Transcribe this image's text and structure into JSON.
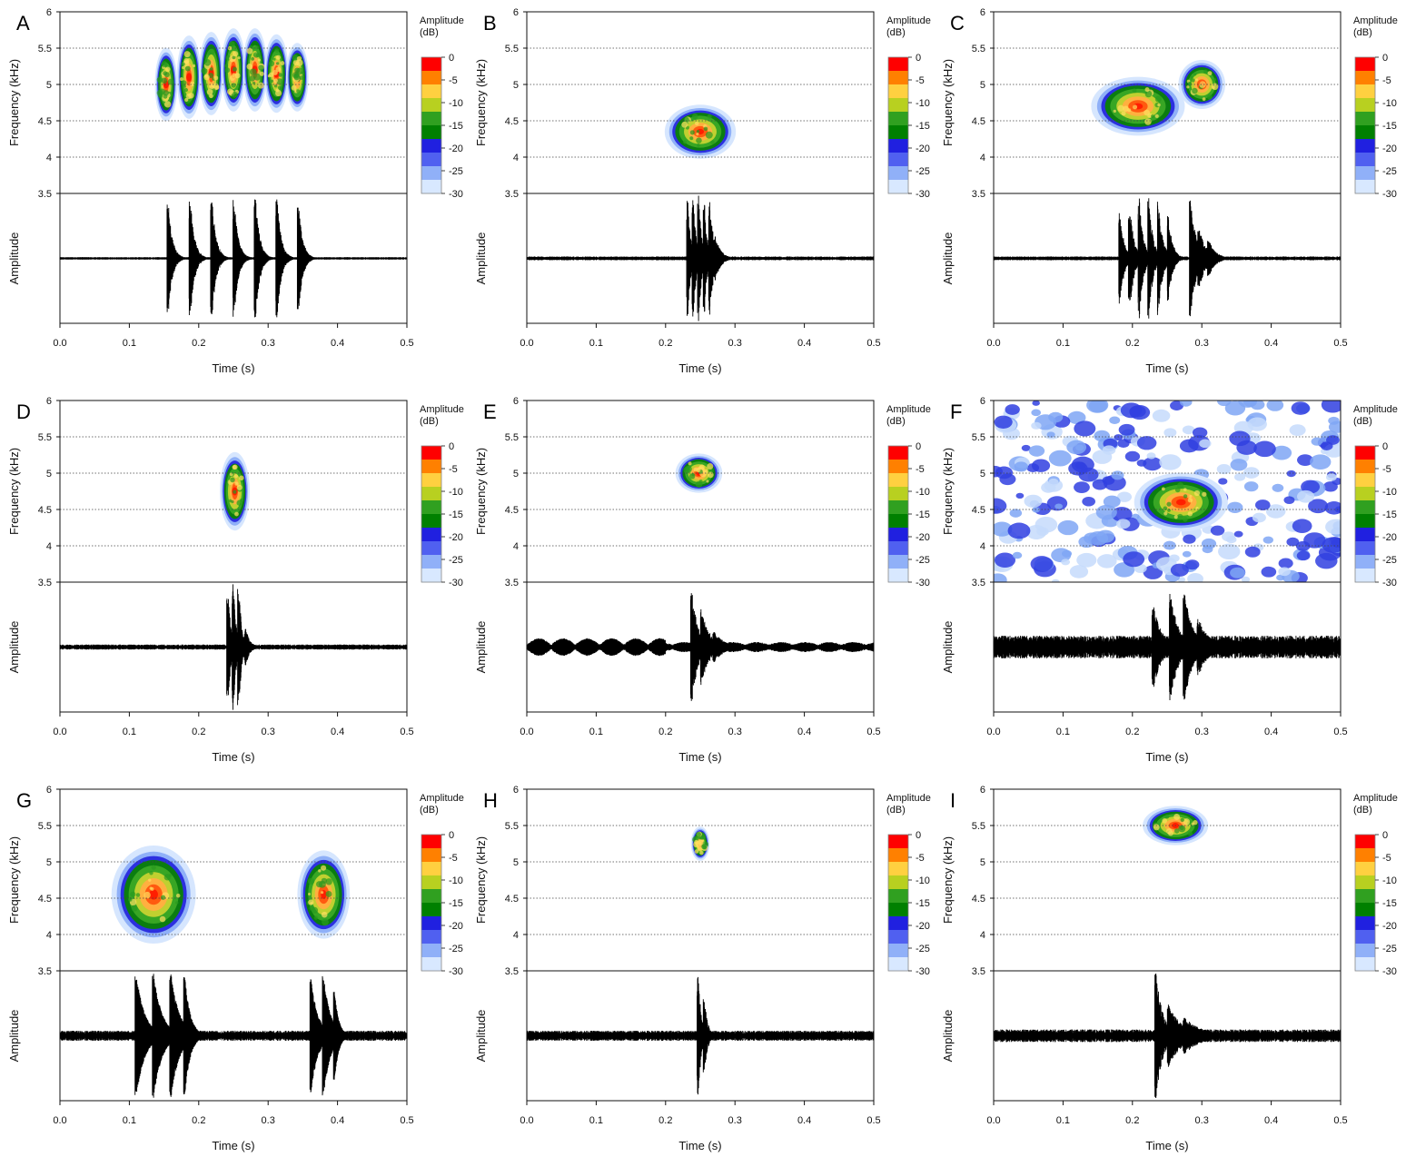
{
  "chart_data": {
    "type": "spectrogram-oscillogram",
    "shared": {
      "xlabel": "Time (s)",
      "ylabel_top": "Frequency (kHz)",
      "ylabel_bottom": "Amplitude",
      "xlim": [
        0,
        0.5
      ],
      "xticks": [
        "0.0",
        "0.1",
        "0.2",
        "0.3",
        "0.4",
        "0.5"
      ],
      "ylim_top": [
        3.5,
        6
      ],
      "yticks_top": [
        "3.5",
        "4",
        "4.5",
        "5",
        "5.5",
        "6"
      ],
      "grid_frequencies": [
        4,
        4.5,
        5,
        5.5
      ],
      "grid": "dotted horizontal lines in spectrogram",
      "colorbar": {
        "title": "Amplitude",
        "unit": "(dB)",
        "ticks": [
          "0",
          "-5",
          "-10",
          "-15",
          "-20",
          "-25",
          "-30"
        ],
        "range": [
          -30,
          0
        ],
        "colors": [
          "#ff0000",
          "#ff8000",
          "#ffd040",
          "#b8d020",
          "#30a020",
          "#008000",
          "#2020e0",
          "#5060f0",
          "#90b0f8",
          "#d8e8ff"
        ]
      }
    },
    "panels": [
      {
        "label": "A",
        "blobs": [
          {
            "t": 0.153,
            "f": 5.0,
            "w": 0.012,
            "h": 0.75
          },
          {
            "t": 0.186,
            "f": 5.1,
            "w": 0.013,
            "h": 0.85
          },
          {
            "t": 0.218,
            "f": 5.15,
            "w": 0.013,
            "h": 0.85
          },
          {
            "t": 0.25,
            "f": 5.2,
            "w": 0.013,
            "h": 0.85
          },
          {
            "t": 0.281,
            "f": 5.2,
            "w": 0.013,
            "h": 0.85
          },
          {
            "t": 0.312,
            "f": 5.15,
            "w": 0.013,
            "h": 0.8
          },
          {
            "t": 0.342,
            "f": 5.1,
            "w": 0.012,
            "h": 0.7
          }
        ],
        "pulses": [
          {
            "t": 0.156,
            "a": 0.92,
            "d": 0.006
          },
          {
            "t": 0.188,
            "a": 0.95,
            "d": 0.006
          },
          {
            "t": 0.219,
            "a": 0.97,
            "d": 0.006
          },
          {
            "t": 0.251,
            "a": 0.97,
            "d": 0.006
          },
          {
            "t": 0.282,
            "a": 0.97,
            "d": 0.006
          },
          {
            "t": 0.313,
            "a": 0.95,
            "d": 0.006
          },
          {
            "t": 0.344,
            "a": 0.85,
            "d": 0.006
          }
        ],
        "noise": 0.02,
        "bg_noise": 0
      },
      {
        "label": "B",
        "blobs": [
          {
            "t": 0.25,
            "f": 4.35,
            "w": 0.038,
            "h": 0.55
          }
        ],
        "pulses": [
          {
            "t": 0.232,
            "a": 1.0,
            "d": 0.004
          },
          {
            "t": 0.24,
            "a": 1.0,
            "d": 0.004
          },
          {
            "t": 0.248,
            "a": 1.0,
            "d": 0.004
          },
          {
            "t": 0.256,
            "a": 0.98,
            "d": 0.004
          },
          {
            "t": 0.264,
            "a": 0.9,
            "d": 0.006
          },
          {
            "t": 0.272,
            "a": 0.35,
            "d": 0.008
          }
        ],
        "noise": 0.03,
        "bg_noise": 0
      },
      {
        "label": "C",
        "blobs": [
          {
            "t": 0.208,
            "f": 4.7,
            "w": 0.05,
            "h": 0.6
          },
          {
            "t": 0.3,
            "f": 5.0,
            "w": 0.025,
            "h": 0.5
          }
        ],
        "pulses": [
          {
            "t": 0.182,
            "a": 0.8,
            "d": 0.006
          },
          {
            "t": 0.196,
            "a": 0.9,
            "d": 0.006
          },
          {
            "t": 0.21,
            "a": 0.95,
            "d": 0.006
          },
          {
            "t": 0.224,
            "a": 0.97,
            "d": 0.006
          },
          {
            "t": 0.238,
            "a": 0.9,
            "d": 0.006
          },
          {
            "t": 0.252,
            "a": 0.7,
            "d": 0.006
          },
          {
            "t": 0.284,
            "a": 0.98,
            "d": 0.008
          },
          {
            "t": 0.296,
            "a": 0.5,
            "d": 0.01
          },
          {
            "t": 0.31,
            "a": 0.3,
            "d": 0.01
          }
        ],
        "noise": 0.03,
        "bg_noise": 0
      },
      {
        "label": "D",
        "blobs": [
          {
            "t": 0.252,
            "f": 4.75,
            "w": 0.016,
            "h": 0.8
          }
        ],
        "pulses": [
          {
            "t": 0.242,
            "a": 1.0,
            "d": 0.004
          },
          {
            "t": 0.25,
            "a": 1.0,
            "d": 0.004
          },
          {
            "t": 0.258,
            "a": 0.98,
            "d": 0.004
          },
          {
            "t": 0.268,
            "a": 0.3,
            "d": 0.006
          }
        ],
        "noise": 0.04,
        "bg_noise": 0
      },
      {
        "label": "E",
        "blobs": [
          {
            "t": 0.248,
            "f": 5.0,
            "w": 0.025,
            "h": 0.4
          }
        ],
        "pulses": [
          {
            "t": 0.238,
            "a": 1.0,
            "d": 0.008
          },
          {
            "t": 0.252,
            "a": 0.6,
            "d": 0.012
          },
          {
            "t": 0.27,
            "a": 0.25,
            "d": 0.015
          }
        ],
        "noise": 0.04,
        "bg_noise": 0,
        "wobble": 0.1
      },
      {
        "label": "F",
        "blobs": [
          {
            "t": 0.27,
            "f": 4.6,
            "w": 0.05,
            "h": 0.6
          }
        ],
        "pulses": [
          {
            "t": 0.23,
            "a": 0.7,
            "d": 0.012
          },
          {
            "t": 0.255,
            "a": 0.85,
            "d": 0.012
          },
          {
            "t": 0.275,
            "a": 0.9,
            "d": 0.012
          },
          {
            "t": 0.295,
            "a": 0.5,
            "d": 0.014
          }
        ],
        "noise": 0.18,
        "bg_noise": 1
      },
      {
        "label": "G",
        "blobs": [
          {
            "t": 0.135,
            "f": 4.55,
            "w": 0.045,
            "h": 1.0
          },
          {
            "t": 0.38,
            "f": 4.55,
            "w": 0.028,
            "h": 0.9
          }
        ],
        "pulses": [
          {
            "t": 0.11,
            "a": 1.0,
            "d": 0.012
          },
          {
            "t": 0.135,
            "a": 1.0,
            "d": 0.012
          },
          {
            "t": 0.16,
            "a": 1.0,
            "d": 0.012
          },
          {
            "t": 0.18,
            "a": 0.95,
            "d": 0.008
          },
          {
            "t": 0.362,
            "a": 0.9,
            "d": 0.01
          },
          {
            "t": 0.38,
            "a": 0.95,
            "d": 0.01
          },
          {
            "t": 0.396,
            "a": 0.7,
            "d": 0.006
          }
        ],
        "noise": 0.08,
        "bg_noise": 0,
        "dense": 1
      },
      {
        "label": "H",
        "blobs": [
          {
            "t": 0.25,
            "f": 5.25,
            "w": 0.01,
            "h": 0.35
          }
        ],
        "pulses": [
          {
            "t": 0.247,
            "a": 1.0,
            "d": 0.005
          },
          {
            "t": 0.256,
            "a": 0.6,
            "d": 0.005
          }
        ],
        "noise": 0.08,
        "bg_noise": 0
      },
      {
        "label": "I",
        "blobs": [
          {
            "t": 0.262,
            "f": 5.5,
            "w": 0.035,
            "h": 0.4
          }
        ],
        "pulses": [
          {
            "t": 0.234,
            "a": 1.0,
            "d": 0.01
          },
          {
            "t": 0.252,
            "a": 0.5,
            "d": 0.02
          },
          {
            "t": 0.275,
            "a": 0.3,
            "d": 0.025
          }
        ],
        "noise": 0.1,
        "bg_noise": 0
      }
    ]
  }
}
